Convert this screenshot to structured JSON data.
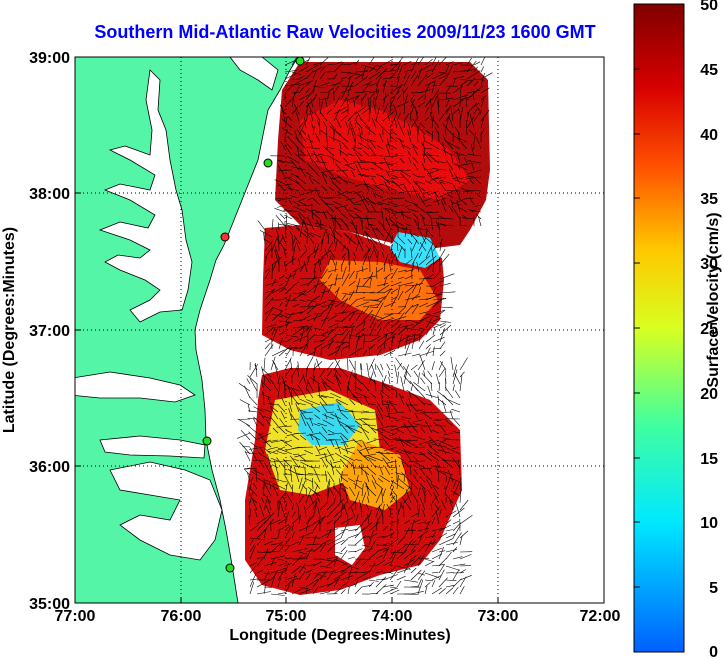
{
  "title": "Southern Mid-Atlantic Raw Velocities 2009/11/23 1600 GMT",
  "map": {
    "xlabel": "Longitude (Degrees:Minutes)",
    "ylabel": "Latitude (Degrees:Minutes)",
    "x_ticks": [
      "77:00",
      "76:00",
      "75:00",
      "74:00",
      "73:00",
      "72:00"
    ],
    "y_ticks": [
      "39:00",
      "38:00",
      "37:00",
      "36:00",
      "35:00"
    ],
    "lon_range": [
      -77,
      -72
    ],
    "lat_range": [
      35,
      39
    ],
    "land_color": "#55f5a8",
    "ocean_color": "#ffffff",
    "grid": "dotted",
    "station_marker_colors": [
      "#22dd22",
      "#ff3333"
    ]
  },
  "colorbar": {
    "label": "Surface Velocity (cm/s)",
    "ticks": [
      "50",
      "45",
      "40",
      "35",
      "30",
      "25",
      "20",
      "15",
      "10",
      "5",
      "0"
    ],
    "range": [
      0,
      50
    ],
    "colormap": "jet"
  }
}
